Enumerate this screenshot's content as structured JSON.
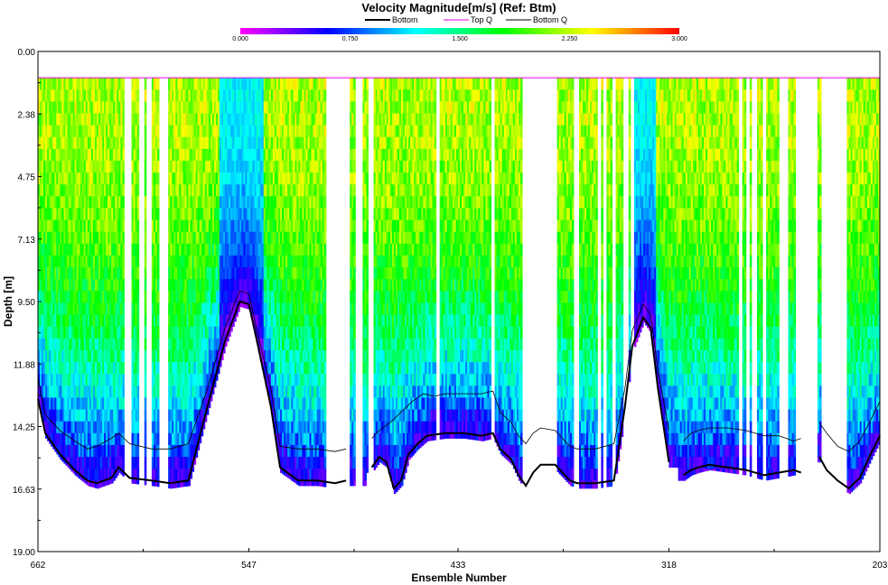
{
  "chart_data": {
    "type": "heatmap",
    "title": "Velocity Magnitude[m/s] (Ref: Btm)",
    "xlabel": "Ensemble Number",
    "ylabel": "Depth [m]",
    "x_ticks": [
      "662",
      "547",
      "433",
      "318",
      "203"
    ],
    "x_range": [
      662,
      203
    ],
    "y_ticks": [
      "0.00",
      "2.38",
      "4.75",
      "7.13",
      "9.50",
      "11.88",
      "14.25",
      "16.63",
      "19.00"
    ],
    "ylim": [
      0,
      19
    ],
    "legend": [
      {
        "name": "Bottom",
        "color": "#000000"
      },
      {
        "name": "Top Q",
        "color": "#e000e0"
      },
      {
        "name": "Bottom Q",
        "color": "#000000"
      }
    ],
    "colorbar": {
      "min": 0,
      "max": 3,
      "tick_labels": [
        "0.000",
        "0.750",
        "1.500",
        "2.250",
        "3.000"
      ],
      "colors": [
        "#ff00ff",
        "#0000ff",
        "#00ffff",
        "#00ff00",
        "#ffff00",
        "#ff0000"
      ]
    },
    "top_q_depth": 1.0,
    "bottom_depth_profile": {
      "x": [
        662,
        658,
        650,
        642,
        635,
        630,
        622,
        618,
        612,
        600,
        590,
        580,
        570,
        560,
        552,
        547,
        542,
        535,
        530,
        520,
        510,
        500,
        494,
        484,
        480,
        476,
        472,
        468,
        464,
        460,
        455,
        450,
        440,
        430,
        420,
        414,
        410,
        404,
        400,
        396,
        392,
        388,
        380,
        372,
        368,
        358,
        348,
        342,
        338,
        332,
        328,
        324,
        318,
        314,
        310,
        306,
        302,
        296,
        286,
        276,
        266,
        258,
        250,
        246,
        240,
        236,
        232,
        226,
        220,
        214,
        208,
        203
      ],
      "y": [
        13.2,
        14.5,
        15.3,
        15.9,
        16.3,
        16.4,
        16.2,
        15.8,
        16.2,
        16.3,
        16.4,
        16.3,
        13.6,
        11.0,
        9.5,
        9.6,
        11.2,
        13.5,
        15.8,
        16.3,
        16.3,
        16.4,
        16.3,
        null,
        15.8,
        15.4,
        15.6,
        16.6,
        16.3,
        15.3,
        14.9,
        14.6,
        14.5,
        14.5,
        14.6,
        14.5,
        15.1,
        15.5,
        16.1,
        16.5,
        16.0,
        15.7,
        15.7,
        16.3,
        16.4,
        16.4,
        16.3,
        13.5,
        11.2,
        10.1,
        10.5,
        12.8,
        15.6,
        null,
        16.1,
        15.9,
        15.8,
        15.7,
        15.8,
        15.9,
        16.1,
        16.0,
        15.9,
        16.0,
        null,
        15.4,
        15.9,
        16.3,
        16.6,
        16.2,
        15.3,
        14.6
      ]
    },
    "bottom_q_profile": {
      "x": [
        662,
        658,
        650,
        642,
        635,
        630,
        622,
        618,
        612,
        600,
        590,
        580,
        570,
        560,
        552,
        547,
        542,
        535,
        530,
        520,
        510,
        500,
        494,
        484,
        480,
        476,
        470,
        464,
        458,
        452,
        446,
        440,
        430,
        420,
        414,
        410,
        404,
        400,
        396,
        392,
        388,
        380,
        372,
        368,
        358,
        348,
        342,
        338,
        332,
        328,
        324,
        318,
        314,
        310,
        306,
        302,
        296,
        286,
        276,
        266,
        258,
        250,
        246,
        240,
        236,
        232,
        226,
        220,
        214,
        208,
        203
      ],
      "y": [
        12.4,
        13.8,
        14.4,
        14.8,
        15.1,
        15.0,
        14.7,
        14.5,
        14.9,
        15.1,
        15.1,
        14.9,
        12.9,
        10.5,
        9.1,
        9.2,
        10.8,
        12.8,
        15.0,
        15.1,
        15.1,
        15.2,
        15.1,
        null,
        14.7,
        14.4,
        14.1,
        13.7,
        13.3,
        13.0,
        13.1,
        13.0,
        13.0,
        13.0,
        12.9,
        13.7,
        14.1,
        14.6,
        14.9,
        14.5,
        14.3,
        14.4,
        15.0,
        15.1,
        15.1,
        14.9,
        12.8,
        10.6,
        9.6,
        10.0,
        12.1,
        14.4,
        null,
        14.8,
        14.5,
        14.4,
        14.3,
        14.3,
        14.4,
        14.6,
        14.6,
        14.8,
        14.7,
        null,
        14.1,
        14.5,
        15.0,
        15.2,
        14.8,
        14.0,
        13.3
      ]
    },
    "gaps_x": [
      [
        615,
        612
      ],
      [
        607,
        605
      ],
      [
        603,
        601
      ],
      [
        596,
        592
      ],
      [
        505,
        493
      ],
      [
        489,
        486
      ],
      [
        482,
        480
      ],
      [
        445,
        444
      ],
      [
        415,
        414
      ],
      [
        398,
        380
      ],
      [
        370,
        368
      ],
      [
        357,
        356
      ],
      [
        354,
        353
      ],
      [
        349,
        348
      ],
      [
        343,
        341
      ],
      [
        339,
        338
      ],
      [
        276,
        275
      ],
      [
        273,
        271
      ],
      [
        267,
        266
      ],
      [
        258,
        256
      ],
      [
        255,
        254
      ],
      [
        249,
        238
      ],
      [
        235,
        222
      ],
      [
        280,
        279
      ]
    ]
  }
}
